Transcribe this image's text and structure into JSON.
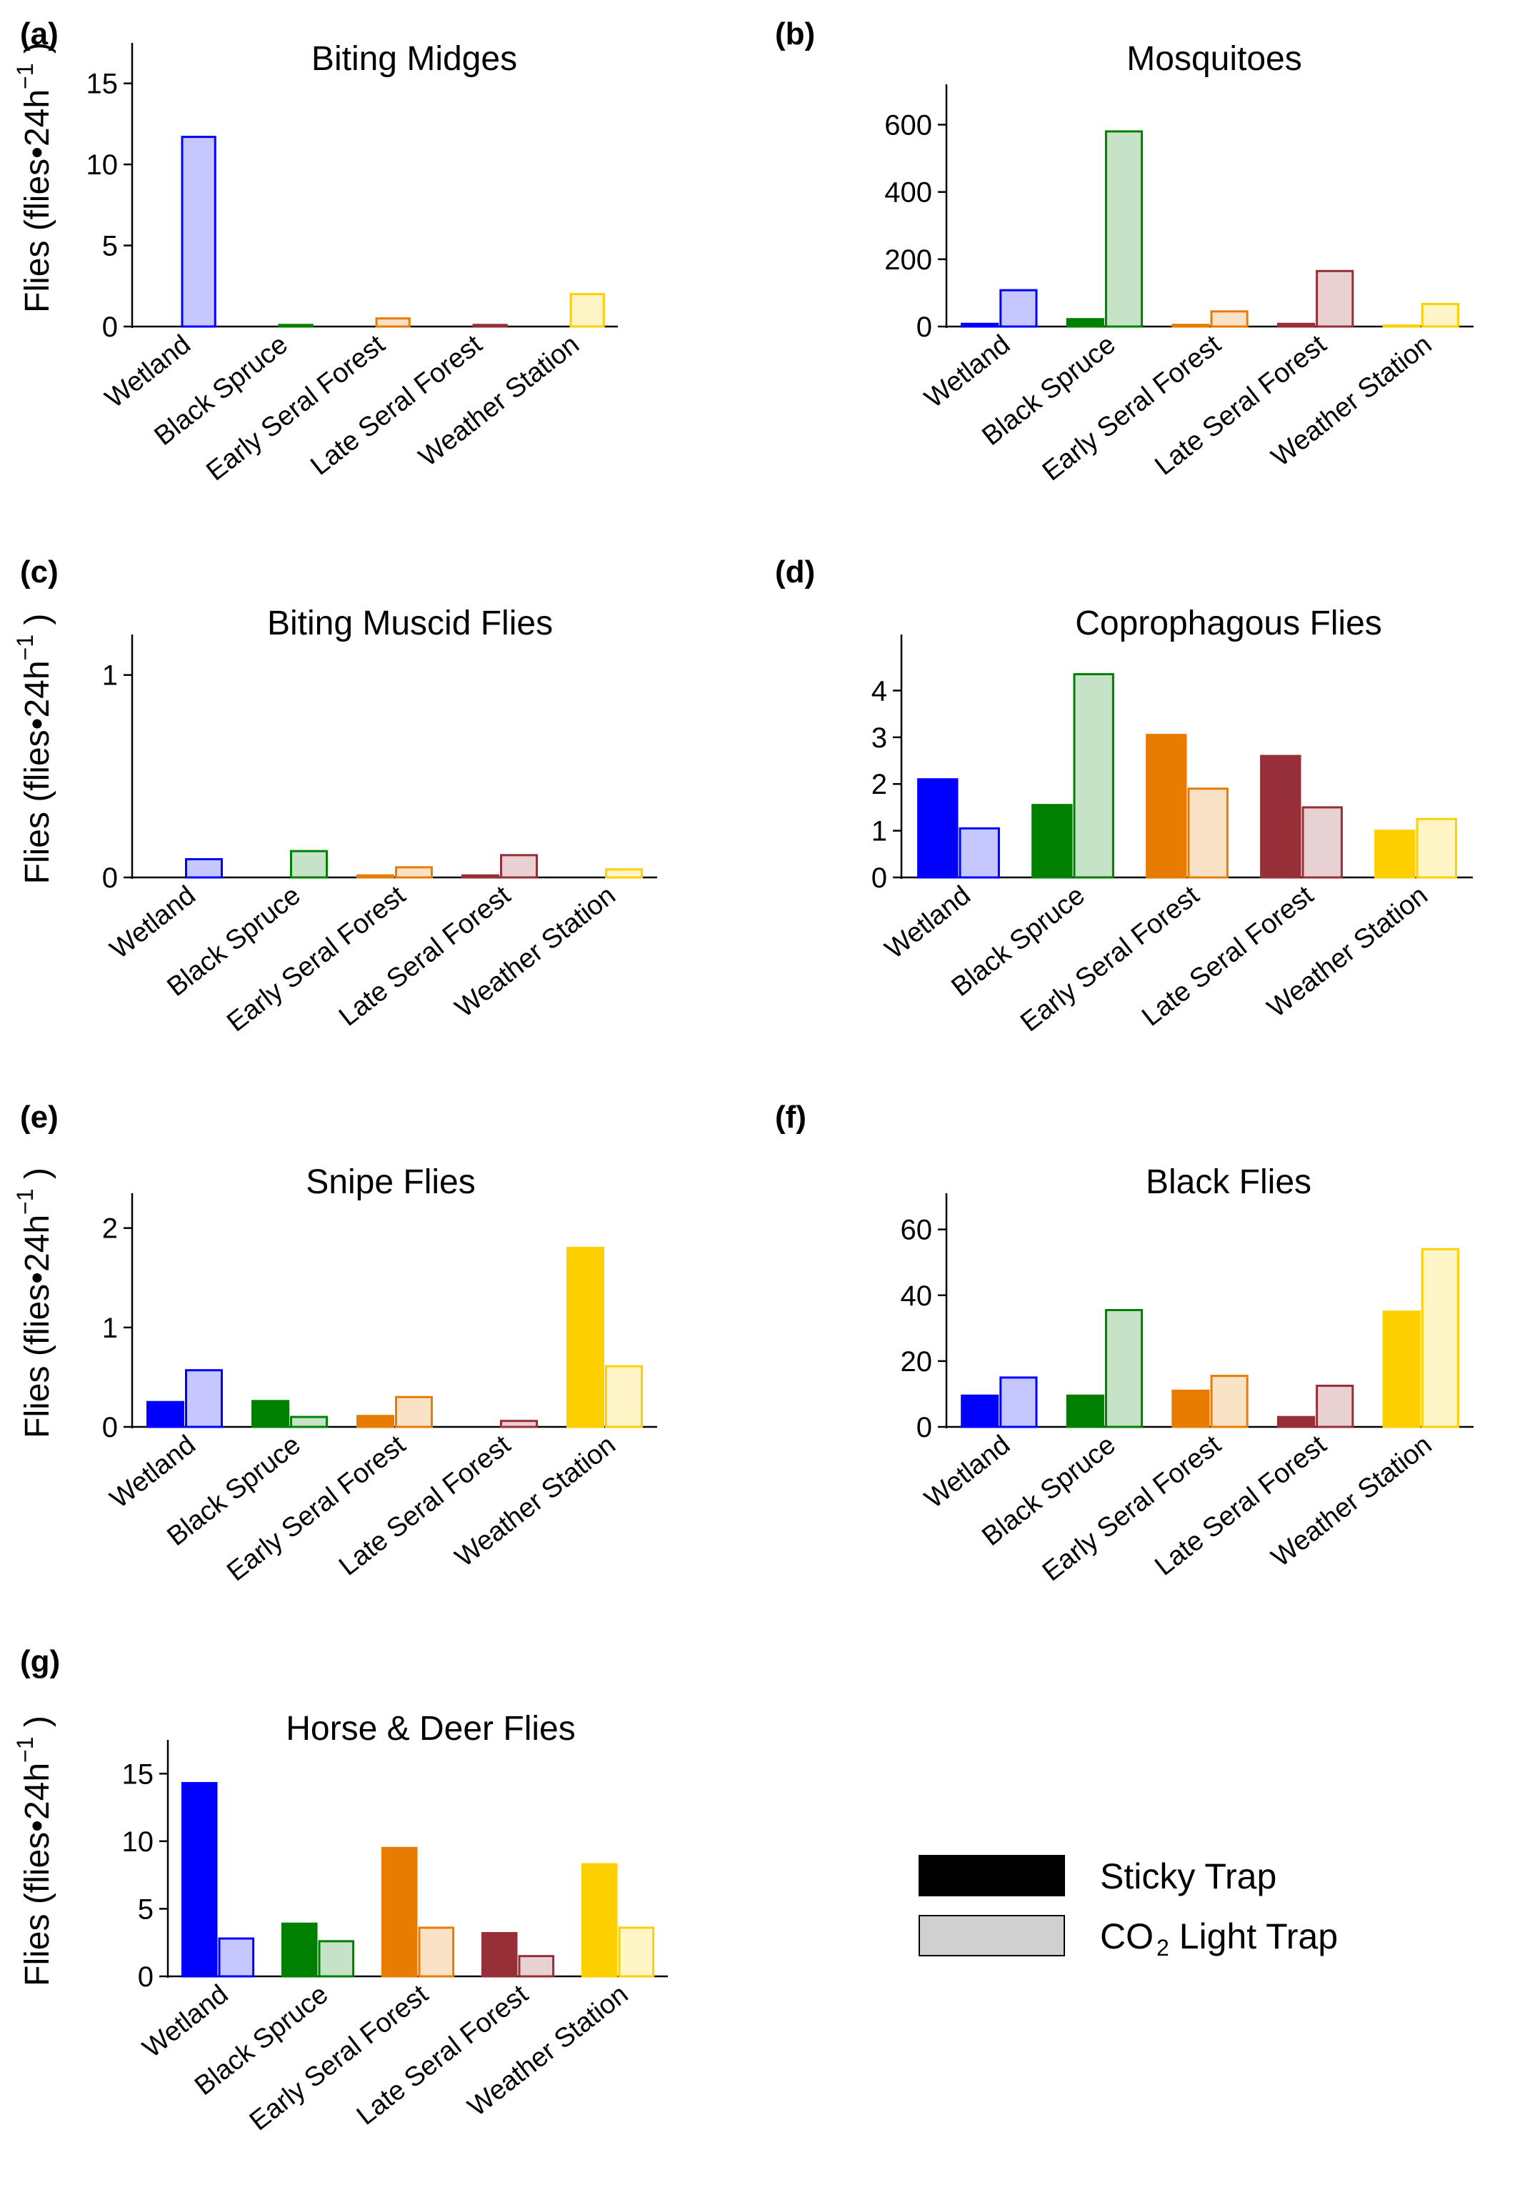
{
  "legend": {
    "sticky_label": "Sticky Trap",
    "co2_label_main": "CO",
    "co2_label_sub": "2",
    "co2_label_rest": " Light Trap"
  },
  "colors": {
    "Wetland": "#0000ff",
    "Black Spruce": "#008000",
    "Early Seral Forest": "#e87c00",
    "Late Seral Forest": "#962f37",
    "Weather Station": "#ffd000"
  },
  "chart_data": [
    {
      "type": "bar",
      "panel": "(a)",
      "title": "Biting Midges",
      "ylabel": "Flies (flies•24h",
      "ylabel_sup": "−1",
      "ylabel_close": ")",
      "ylim": [
        0,
        17.5
      ],
      "yticks": [
        "0",
        "5",
        "10",
        "15"
      ],
      "categories": [
        "Wetland",
        "Black Spruce",
        "Early Seral Forest",
        "Late Seral Forest",
        "Weather Station"
      ],
      "series": [
        {
          "name": "Sticky Trap",
          "values": [
            0,
            0,
            0,
            0,
            0
          ]
        },
        {
          "name": "CO2 Light Trap",
          "values": [
            11.7,
            0.1,
            0.5,
            0.1,
            2.0
          ]
        }
      ]
    },
    {
      "type": "bar",
      "panel": "(b)",
      "title": "Mosquitoes",
      "ylabel": "",
      "ylabel_sup": "",
      "ylabel_close": "",
      "ylim": [
        0,
        720
      ],
      "yticks": [
        "0",
        "200",
        "400",
        "600"
      ],
      "categories": [
        "Wetland",
        "Black Spruce",
        "Early Seral Forest",
        "Late Seral Forest",
        "Weather Station"
      ],
      "series": [
        {
          "name": "Sticky Trap",
          "values": [
            8,
            22,
            5,
            8,
            3
          ]
        },
        {
          "name": "CO2 Light Trap",
          "values": [
            108,
            580,
            45,
            165,
            67
          ]
        }
      ]
    },
    {
      "type": "bar",
      "panel": "(c)",
      "title": "Biting Muscid Flies",
      "ylabel": "Flies (flies•24h",
      "ylabel_sup": "−1",
      "ylabel_close": ")",
      "ylim": [
        0,
        1.2
      ],
      "yticks": [
        "0",
        "1"
      ],
      "categories": [
        "Wetland",
        "Black Spruce",
        "Early Seral Forest",
        "Late Seral Forest",
        "Weather Station"
      ],
      "series": [
        {
          "name": "Sticky Trap",
          "values": [
            0,
            0,
            0.01,
            0.01,
            0
          ]
        },
        {
          "name": "CO2 Light Trap",
          "values": [
            0.09,
            0.13,
            0.05,
            0.11,
            0.04
          ]
        }
      ]
    },
    {
      "type": "bar",
      "panel": "(d)",
      "title": "Coprophagous Flies",
      "ylabel": "",
      "ylabel_sup": "",
      "ylabel_close": "",
      "ylim": [
        0,
        5.2
      ],
      "yticks": [
        "0",
        "1",
        "2",
        "3",
        "4"
      ],
      "categories": [
        "Wetland",
        "Black Spruce",
        "Early Seral Forest",
        "Late Seral Forest",
        "Weather Station"
      ],
      "series": [
        {
          "name": "Sticky Trap",
          "values": [
            2.1,
            1.55,
            3.05,
            2.6,
            1.0
          ]
        },
        {
          "name": "CO2 Light Trap",
          "values": [
            1.05,
            4.35,
            1.9,
            1.5,
            1.25
          ]
        }
      ]
    },
    {
      "type": "bar",
      "panel": "(e)",
      "title": "Snipe Flies",
      "ylabel": "Flies (flies•24h",
      "ylabel_sup": "−1",
      "ylabel_close": ")",
      "ylim": [
        0,
        2.35
      ],
      "yticks": [
        "0",
        "1",
        "2"
      ],
      "categories": [
        "Wetland",
        "Black Spruce",
        "Early Seral Forest",
        "Late Seral Forest",
        "Weather Station"
      ],
      "series": [
        {
          "name": "Sticky Trap",
          "values": [
            0.25,
            0.26,
            0.11,
            0,
            1.8
          ]
        },
        {
          "name": "CO2 Light Trap",
          "values": [
            0.57,
            0.1,
            0.3,
            0.06,
            0.61
          ]
        }
      ]
    },
    {
      "type": "bar",
      "panel": "(f)",
      "title": "Black Flies",
      "ylabel": "",
      "ylabel_sup": "",
      "ylabel_close": "",
      "ylim": [
        0,
        71
      ],
      "yticks": [
        "0",
        "20",
        "40",
        "60"
      ],
      "categories": [
        "Wetland",
        "Black Spruce",
        "Early Seral Forest",
        "Late Seral Forest",
        "Weather Station"
      ],
      "series": [
        {
          "name": "Sticky Trap",
          "values": [
            9.5,
            9.5,
            11,
            3,
            35
          ]
        },
        {
          "name": "CO2 Light Trap",
          "values": [
            15,
            35.5,
            15.5,
            12.5,
            54
          ]
        }
      ]
    },
    {
      "type": "bar",
      "panel": "(g)",
      "title": "Horse & Deer Flies",
      "ylabel": "Flies (flies•24h",
      "ylabel_sup": "−1",
      "ylabel_close": ")",
      "ylim": [
        0,
        17.5
      ],
      "yticks": [
        "0",
        "5",
        "10",
        "15"
      ],
      "categories": [
        "Wetland",
        "Black Spruce",
        "Early Seral Forest",
        "Late Seral Forest",
        "Weather Station"
      ],
      "series": [
        {
          "name": "Sticky Trap",
          "values": [
            14.3,
            3.9,
            9.5,
            3.2,
            8.3
          ]
        },
        {
          "name": "CO2 Light Trap",
          "values": [
            2.8,
            2.6,
            3.6,
            1.5,
            3.6
          ]
        }
      ]
    }
  ]
}
